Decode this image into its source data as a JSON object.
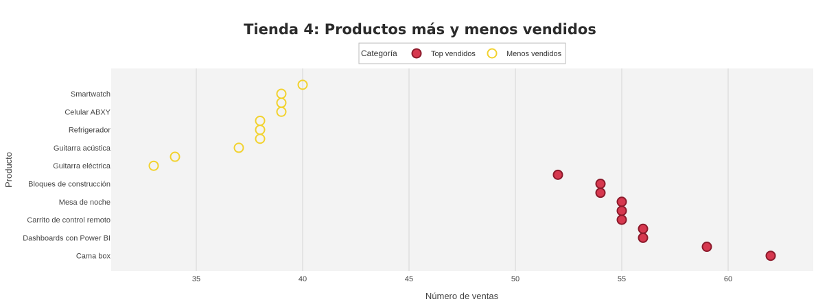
{
  "chart_data": {
    "type": "scatter",
    "title": "Tienda 4: Productos más y menos vendidos",
    "xlabel": "Número de ventas",
    "ylabel": "Producto",
    "xlim": [
      31,
      64
    ],
    "x_ticks": [
      35,
      40,
      45,
      50,
      55,
      60
    ],
    "y_tick_labels": [
      "Smartwatch",
      "Celular ABXY",
      "Refrigerador",
      "Guitarra acústica",
      "Guitarra eléctrica",
      "Bloques de construcción",
      "Mesa de noche",
      "Carrito de control remoto",
      "Dashboards con Power BI",
      "Cama box"
    ],
    "grid": true,
    "legend": {
      "title": "Categoría",
      "position": "top-center",
      "entries": [
        "Top vendidos",
        "Menos vendidos"
      ]
    },
    "colors": {
      "top_fill": "#d6384f",
      "top_stroke": "#8b1a2b",
      "less_stroke": "#f2d22e",
      "plot_bg": "#f3f3f3",
      "grid": "#d4d4d4"
    },
    "series": [
      {
        "name": "Menos vendidos",
        "style": "hollow",
        "points": [
          {
            "x": 40,
            "y": "Smartwatch"
          },
          {
            "x": 39,
            "y": "Smartwatch"
          },
          {
            "x": 39,
            "y": "Celular ABXY"
          },
          {
            "x": 39,
            "y": "Celular ABXY"
          },
          {
            "x": 38,
            "y": "Refrigerador"
          },
          {
            "x": 38,
            "y": "Refrigerador"
          },
          {
            "x": 38,
            "y": "Guitarra acústica"
          },
          {
            "x": 37,
            "y": "Guitarra acústica"
          },
          {
            "x": 34,
            "y": "Guitarra eléctrica"
          },
          {
            "x": 33,
            "y": "Guitarra eléctrica"
          }
        ]
      },
      {
        "name": "Top vendidos",
        "style": "filled",
        "points": [
          {
            "x": 52,
            "y": "Bloques de construcción"
          },
          {
            "x": 54,
            "y": "Bloques de construcción"
          },
          {
            "x": 54,
            "y": "Mesa de noche"
          },
          {
            "x": 55,
            "y": "Mesa de noche"
          },
          {
            "x": 55,
            "y": "Carrito de control remoto"
          },
          {
            "x": 55,
            "y": "Carrito de control remoto"
          },
          {
            "x": 56,
            "y": "Dashboards con Power BI"
          },
          {
            "x": 56,
            "y": "Dashboards con Power BI"
          },
          {
            "x": 59,
            "y": "Cama box"
          },
          {
            "x": 62,
            "y": "Cama box"
          }
        ]
      }
    ]
  }
}
